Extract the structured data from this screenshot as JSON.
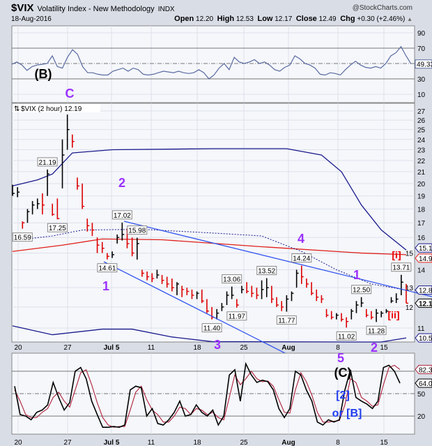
{
  "header": {
    "symbol": "$VIX",
    "description": "Volatility Index - New Methodology",
    "exchange": "INDX",
    "brand": "@StockCharts.com",
    "date": "18-Aug-2016",
    "open_label": "Open",
    "open": "12.20",
    "high_label": "High",
    "high": "12.53",
    "low_label": "Low",
    "low": "12.17",
    "close_label": "Close",
    "close": "12.49",
    "chg_label": "Chg",
    "chg": "+0.30 (+2.46%)",
    "chg_icon": "triangle-up-icon"
  },
  "colors": {
    "up_bar": "#000000",
    "down_bar": "#dd0000",
    "band": "#1a1a8c",
    "sma": "#e0201a",
    "trendline": "#3355ee",
    "wave_purple": "#9b30ff",
    "wave_red": "#ee0000",
    "wave_blue": "#1f3cf0",
    "rsi": "#5a6aa0",
    "stoch_fast": "#000000",
    "stoch_slow": "#b0203a",
    "plot_bg": "#f5f7fb",
    "grid": "#dde1ea"
  },
  "chart_data": [
    {
      "type": "line",
      "name_label": "RSI pane",
      "yticks": [
        "90",
        "70",
        "30",
        "10"
      ],
      "overbought": 70,
      "oversold": 30,
      "midline": 50,
      "last_value_label": "49.33",
      "values": [
        49,
        52,
        48,
        41,
        46,
        48,
        49,
        50,
        60,
        46,
        44,
        58,
        68,
        62,
        46,
        38,
        38,
        36,
        35,
        35,
        40,
        42,
        44,
        40,
        44,
        42,
        36,
        35,
        36,
        38,
        40,
        39,
        38,
        40,
        38,
        37,
        38,
        42,
        38,
        30,
        35,
        44,
        50,
        42,
        58,
        52,
        50,
        52,
        55,
        50,
        52,
        48,
        42,
        40,
        45,
        48,
        60,
        56,
        50,
        48,
        44,
        36,
        35,
        38,
        37,
        35,
        42,
        48,
        53,
        48,
        45,
        44,
        46,
        44,
        50,
        60,
        64,
        72,
        60,
        49.33
      ],
      "ylim": [
        0,
        100
      ]
    },
    {
      "type": "bar",
      "legend": "$VIX (2 hour) 12.19",
      "legend_icon": "price-bars-icon",
      "scale": "log",
      "ylim": [
        10.3,
        27.5
      ],
      "yticks": [
        "27",
        "26",
        "25",
        "24",
        "23",
        "22",
        "21",
        "20",
        "19",
        "18",
        "17",
        "16",
        "15",
        "14",
        "13",
        "12",
        "11"
      ],
      "xticks": [
        "20",
        "27",
        "Jul 5",
        "11",
        "18",
        "25",
        "Aug",
        "8",
        "15"
      ],
      "bars_hlc": [
        [
          19.9,
          19.0,
          19.2
        ],
        [
          19.7,
          18.9,
          19.3
        ],
        [
          17.1,
          16.59,
          17.0
        ],
        [
          18.0,
          17.0,
          17.8
        ],
        [
          18.6,
          17.6,
          18.3
        ],
        [
          18.8,
          18.0,
          18.4
        ],
        [
          19.2,
          17.6,
          18.3
        ],
        [
          21.19,
          19.0,
          20.8
        ],
        [
          18.4,
          17.5,
          17.6
        ],
        [
          18.8,
          17.25,
          17.3
        ],
        [
          24.0,
          19.6,
          22.5
        ],
        [
          26.6,
          23.0,
          25.0
        ],
        [
          24.5,
          23.2,
          23.8
        ],
        [
          20.5,
          19.5,
          19.8
        ],
        [
          20.0,
          18.0,
          18.2
        ],
        [
          17.3,
          16.4,
          16.8
        ],
        [
          17.0,
          16.1,
          16.5
        ],
        [
          16.0,
          15.0,
          15.5
        ],
        [
          15.7,
          15.0,
          15.3
        ],
        [
          15.0,
          14.61,
          14.8
        ],
        [
          15.1,
          14.7,
          14.9
        ],
        [
          16.2,
          15.6,
          16.0
        ],
        [
          17.02,
          15.8,
          16.2
        ],
        [
          16.6,
          15.3,
          15.6
        ],
        [
          16.0,
          14.8,
          15.0
        ],
        [
          15.98,
          14.6,
          15.6
        ],
        [
          14.0,
          13.6,
          13.8
        ],
        [
          13.9,
          13.4,
          13.6
        ],
        [
          13.8,
          13.3,
          13.5
        ],
        [
          14.0,
          13.5,
          13.7
        ],
        [
          13.7,
          13.2,
          13.4
        ],
        [
          13.6,
          13.0,
          13.2
        ],
        [
          13.5,
          12.8,
          13.0
        ],
        [
          13.3,
          12.6,
          13.2
        ],
        [
          13.1,
          12.5,
          12.9
        ],
        [
          13.0,
          12.6,
          12.8
        ],
        [
          12.9,
          12.4,
          12.6
        ],
        [
          12.8,
          12.4,
          12.7
        ],
        [
          12.9,
          12.2,
          12.3
        ],
        [
          12.4,
          11.7,
          11.8
        ],
        [
          12.0,
          11.4,
          11.5
        ],
        [
          11.9,
          11.4,
          11.7
        ],
        [
          12.2,
          11.8,
          12.0
        ],
        [
          12.8,
          12.1,
          12.6
        ],
        [
          13.06,
          12.4,
          12.6
        ],
        [
          12.4,
          11.97,
          12.1
        ],
        [
          13.1,
          12.7,
          12.9
        ],
        [
          13.3,
          12.7,
          12.8
        ],
        [
          13.1,
          12.5,
          12.7
        ],
        [
          13.0,
          12.4,
          12.6
        ],
        [
          13.4,
          12.4,
          12.9
        ],
        [
          13.52,
          12.5,
          13.0
        ],
        [
          13.1,
          12.2,
          12.4
        ],
        [
          12.5,
          12.0,
          12.1
        ],
        [
          12.3,
          11.8,
          12.0
        ],
        [
          12.6,
          11.77,
          12.4
        ],
        [
          12.8,
          12.3,
          12.7
        ],
        [
          14.0,
          13.0,
          13.8
        ],
        [
          14.24,
          13.2,
          13.6
        ],
        [
          13.5,
          13.0,
          13.2
        ],
        [
          13.3,
          12.6,
          12.7
        ],
        [
          12.9,
          12.3,
          12.5
        ],
        [
          12.6,
          12.2,
          12.4
        ],
        [
          11.9,
          11.5,
          11.6
        ],
        [
          11.8,
          11.4,
          11.5
        ],
        [
          11.7,
          11.4,
          11.6
        ],
        [
          11.7,
          11.3,
          11.4
        ],
        [
          11.5,
          11.02,
          11.3
        ],
        [
          11.9,
          11.4,
          11.8
        ],
        [
          12.3,
          11.7,
          12.1
        ],
        [
          12.5,
          12.0,
          12.2
        ],
        [
          11.9,
          11.5,
          11.6
        ],
        [
          11.8,
          11.4,
          11.5
        ],
        [
          11.9,
          11.28,
          11.7
        ],
        [
          11.8,
          11.5,
          11.7
        ],
        [
          11.9,
          11.7,
          11.8
        ],
        [
          12.5,
          12.2,
          12.3
        ],
        [
          12.7,
          12.2,
          12.4
        ],
        [
          13.71,
          12.6,
          13.3
        ],
        [
          13.2,
          12.19,
          12.19
        ]
      ],
      "upper_band": [
        [
          0,
          19.8
        ],
        [
          5,
          20.3
        ],
        [
          8,
          20.8
        ],
        [
          12,
          22.7
        ],
        [
          20,
          23.0
        ],
        [
          40,
          23.1
        ],
        [
          55,
          23.1
        ],
        [
          62,
          22.5
        ],
        [
          66,
          21.0
        ],
        [
          70,
          18.3
        ],
        [
          74,
          16.5
        ],
        [
          79,
          15.19
        ]
      ],
      "lower_band": [
        [
          0,
          11.1
        ],
        [
          8,
          10.7
        ],
        [
          18,
          10.95
        ],
        [
          24,
          10.95
        ],
        [
          32,
          10.6
        ],
        [
          40,
          10.4
        ],
        [
          70,
          10.2
        ],
        [
          74,
          10.35
        ],
        [
          79,
          10.56
        ]
      ],
      "sma_red": [
        [
          0,
          15.1
        ],
        [
          10,
          15.5
        ],
        [
          18,
          15.9
        ],
        [
          30,
          15.85
        ],
        [
          50,
          15.4
        ],
        [
          70,
          15.0
        ],
        [
          79,
          14.9
        ]
      ],
      "sma_dotted": [
        [
          0,
          15.8
        ],
        [
          8,
          16.1
        ],
        [
          14,
          16.5
        ],
        [
          26,
          16.55
        ],
        [
          40,
          16.3
        ],
        [
          50,
          16.1
        ],
        [
          58,
          15.1
        ],
        [
          65,
          14.0
        ],
        [
          72,
          13.2
        ],
        [
          79,
          12.87
        ]
      ],
      "price_labels": [
        {
          "bar": 2,
          "value": "16.59",
          "pos": "below"
        },
        {
          "bar": 7,
          "value": "21.19",
          "pos": "above"
        },
        {
          "bar": 9,
          "value": "17.25",
          "pos": "below"
        },
        {
          "bar": 19,
          "value": "14.61",
          "pos": "below"
        },
        {
          "bar": 22,
          "value": "17.02",
          "pos": "above"
        },
        {
          "bar": 25,
          "value": "15.98",
          "pos": "above"
        },
        {
          "bar": 40,
          "value": "11.40",
          "pos": "below"
        },
        {
          "bar": 44,
          "value": "13.06",
          "pos": "above"
        },
        {
          "bar": 45,
          "value": "11.97",
          "pos": "below"
        },
        {
          "bar": 51,
          "value": "13.52",
          "pos": "above"
        },
        {
          "bar": 55,
          "value": "11.77",
          "pos": "below"
        },
        {
          "bar": 58,
          "value": "14.24",
          "pos": "above"
        },
        {
          "bar": 67,
          "value": "11.02",
          "pos": "below"
        },
        {
          "bar": 70,
          "value": "12.50",
          "pos": "above"
        },
        {
          "bar": 73,
          "value": "11.28",
          "pos": "below"
        },
        {
          "bar": 78,
          "value": "13.71",
          "pos": "above"
        }
      ],
      "axis_value_labels": [
        {
          "value": "15.19",
          "color": "#1a1a8c"
        },
        {
          "value": "14.90",
          "color": "#e0201a"
        },
        {
          "value": "12.87",
          "color": "#1a1a8c"
        },
        {
          "value": "12.19",
          "color": "#000000",
          "bold": true
        },
        {
          "value": "10.56",
          "color": "#1a1a8c"
        }
      ]
    },
    {
      "type": "line",
      "yticks": [
        "50",
        "20"
      ],
      "levels": [
        80,
        50,
        20
      ],
      "fast_label": "64.02",
      "slow_label": "82.35",
      "fast": [
        60,
        22,
        20,
        15,
        25,
        28,
        35,
        65,
        45,
        28,
        38,
        80,
        85,
        70,
        40,
        22,
        5,
        5,
        6,
        5,
        8,
        55,
        60,
        58,
        20,
        30,
        10,
        8,
        15,
        25,
        40,
        20,
        22,
        35,
        25,
        20,
        28,
        8,
        20,
        75,
        82,
        40,
        90,
        75,
        65,
        68,
        66,
        55,
        30,
        18,
        30,
        80,
        75,
        55,
        40,
        12,
        8,
        15,
        12,
        15,
        55,
        82,
        45,
        40,
        36,
        30,
        40,
        85,
        88,
        80,
        64.02
      ],
      "slow": [
        55,
        40,
        22,
        18,
        18,
        25,
        30,
        45,
        52,
        40,
        32,
        55,
        78,
        82,
        62,
        38,
        18,
        8,
        5,
        6,
        6,
        28,
        52,
        60,
        42,
        28,
        22,
        12,
        12,
        20,
        32,
        30,
        22,
        30,
        28,
        22,
        25,
        18,
        15,
        45,
        75,
        62,
        70,
        80,
        70,
        66,
        67,
        60,
        42,
        25,
        24,
        55,
        78,
        66,
        48,
        25,
        12,
        12,
        13,
        14,
        35,
        70,
        65,
        45,
        40,
        33,
        35,
        62,
        85,
        88,
        82.35
      ],
      "ylim": [
        0,
        100
      ]
    }
  ],
  "annotations": {
    "wave_B_paren": "(B)",
    "wave_C": "C",
    "wave_1": "1",
    "wave_2": "2",
    "wave_3": "3",
    "wave_4": "4",
    "wave_5": "5",
    "wave_1b": "1",
    "wave_2b": "2",
    "wave_i": "[i]",
    "wave_ii": "[ii]",
    "wave_C_paren": "(C)",
    "wave_2_bracket": "[2]",
    "wave_or_B": "or [B]"
  }
}
